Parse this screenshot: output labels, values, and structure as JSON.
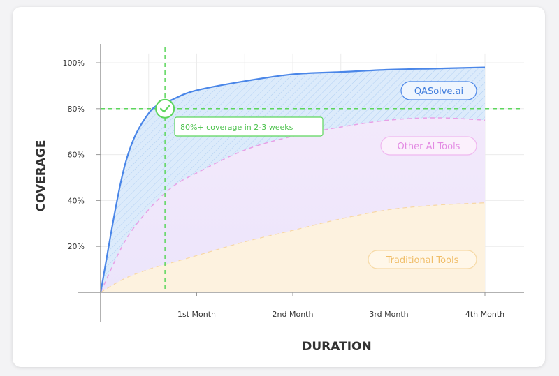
{
  "chart_data": {
    "type": "area",
    "xlabel": "DURATION",
    "ylabel": "COVERAGE",
    "x_ticks": [
      "1st Month",
      "2nd Month",
      "3rd Month",
      "4th Month"
    ],
    "y_ticks": [
      "20%",
      "40%",
      "60%",
      "80%",
      "100%"
    ],
    "xlim": [
      0,
      4.4
    ],
    "ylim": [
      0,
      105
    ],
    "grid": true,
    "x": [
      0,
      0.25,
      0.5,
      0.75,
      1,
      1.5,
      2,
      2.5,
      3,
      3.5,
      4
    ],
    "series": [
      {
        "name": "QASolve.ai",
        "values": [
          0,
          55,
          78,
          84,
          88,
          92,
          95,
          96,
          97,
          97.5,
          98
        ],
        "color": "#4a86e8"
      },
      {
        "name": "Other AI Tools",
        "values": [
          0,
          22,
          36,
          46,
          52,
          62,
          68,
          72,
          75,
          76,
          75
        ],
        "color": "#e8a0e6"
      },
      {
        "name": "Traditional Tools",
        "values": [
          0,
          6,
          10,
          13,
          16,
          22,
          27,
          32,
          36,
          38,
          39
        ],
        "color": "#f5c97a"
      }
    ],
    "annotation": {
      "text": "80%+ coverage in 2-3 weeks",
      "x": 0.45,
      "y": 80,
      "color": "#5cd65c"
    }
  },
  "colors": {
    "qa_fill": "#dcebfb",
    "other_fill": "#efe6fb",
    "trad_fill": "#fdf2df",
    "highlight": "#5cd65c",
    "axis": "#999999",
    "grid": "#ececec"
  }
}
